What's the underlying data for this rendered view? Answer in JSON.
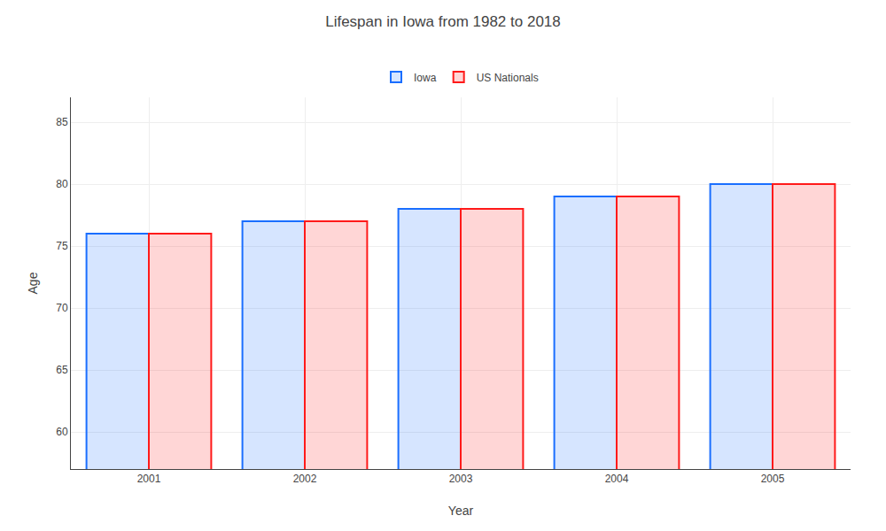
{
  "chart_data": {
    "type": "bar",
    "title": "Lifespan in Iowa from 1982 to 2018",
    "xlabel": "Year",
    "ylabel": "Age",
    "categories": [
      "2001",
      "2002",
      "2003",
      "2004",
      "2005"
    ],
    "series": [
      {
        "name": "Iowa",
        "color": "#1a6eff",
        "values": [
          76,
          77,
          78,
          79,
          80
        ]
      },
      {
        "name": "US Nationals",
        "color": "#ff1a1a",
        "values": [
          76,
          77,
          78,
          79,
          80
        ]
      }
    ],
    "ylim": [
      57,
      87
    ],
    "yticks": [
      60,
      65,
      70,
      75,
      80,
      85
    ],
    "grid": true,
    "legend": "top"
  }
}
